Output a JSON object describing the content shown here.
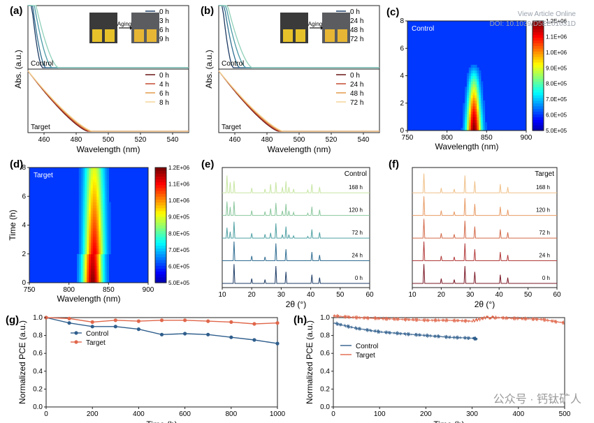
{
  "header": {
    "view_article": "View Article Online",
    "doi": "DOI: 10.1039/D5EE01031D"
  },
  "watermark": "公众号 · 钙钛矿人",
  "palettes": {
    "control": [
      "#1b3a63",
      "#2f6f91",
      "#4a9aa5",
      "#8fd0b8"
    ],
    "target": [
      "#6b1414",
      "#c44a2f",
      "#e29a4a",
      "#f4d59a"
    ],
    "pce_control": "#2f5e8c",
    "pce_target": "#e0664a"
  },
  "chart_data": [
    {
      "id": "a",
      "panel_label": "(a)",
      "type": "line",
      "xlabel": "Wavelength (nm)",
      "ylabel": "Abs. (a.u.)",
      "xlim": [
        450,
        550
      ],
      "xticks": [
        460,
        480,
        500,
        520,
        540
      ],
      "inset_label": "Aging",
      "subplots": [
        {
          "name": "Control",
          "series": [
            {
              "name": "0 h",
              "edge": 459
            },
            {
              "name": "3 h",
              "edge": 461
            },
            {
              "name": "6 h",
              "edge": 465
            },
            {
              "name": "9 h",
              "edge": 469
            }
          ]
        },
        {
          "name": "Target",
          "series": [
            {
              "name": "0 h",
              "edge": 487
            },
            {
              "name": "4 h",
              "edge": 488
            },
            {
              "name": "6 h",
              "edge": 489
            },
            {
              "name": "8 h",
              "edge": 490
            }
          ]
        }
      ]
    },
    {
      "id": "b",
      "panel_label": "(b)",
      "type": "line",
      "xlabel": "Wavelength (nm)",
      "ylabel": "Abs. (a.u.)",
      "xlim": [
        450,
        550
      ],
      "xticks": [
        460,
        480,
        500,
        520,
        540
      ],
      "inset_label": "Aging",
      "subplots": [
        {
          "name": "Control",
          "series": [
            {
              "name": "0 h",
              "edge": 459
            },
            {
              "name": "24 h",
              "edge": 463
            },
            {
              "name": "48 h",
              "edge": 467
            },
            {
              "name": "72 h",
              "edge": 471
            }
          ]
        },
        {
          "name": "Target",
          "series": [
            {
              "name": "0 h",
              "edge": 487
            },
            {
              "name": "24 h",
              "edge": 488
            },
            {
              "name": "48 h",
              "edge": 489
            },
            {
              "name": "72 h",
              "edge": 490
            }
          ]
        }
      ]
    },
    {
      "id": "c",
      "panel_label": "(c)",
      "type": "heatmap",
      "label": "Control",
      "xlabel": "Wavelength (nm)",
      "ylabel": "",
      "xlim": [
        750,
        900
      ],
      "ylim": [
        0,
        8
      ],
      "xticks": [
        750,
        800,
        850,
        900
      ],
      "yticks": [
        0,
        2,
        4,
        6,
        8
      ],
      "colorbar": [
        "5.0E+05",
        "6.0E+05",
        "7.0E+05",
        "8.0E+05",
        "9.0E+05",
        "1.0E+06",
        "1.1E+06",
        "1.2E+06"
      ],
      "peak": {
        "center": 834,
        "max_time": 5.0
      }
    },
    {
      "id": "d",
      "panel_label": "(d)",
      "type": "heatmap",
      "label": "Target",
      "xlabel": "Wavelength (nm)",
      "ylabel": "Time (h)",
      "xlim": [
        750,
        900
      ],
      "ylim": [
        0,
        8
      ],
      "xticks": [
        750,
        800,
        850,
        900
      ],
      "yticks": [
        0,
        2,
        4,
        6,
        8
      ],
      "colorbar": [
        "5.0E+05",
        "6.0E+05",
        "7.0E+05",
        "8.0E+05",
        "9.0E+05",
        "1.0E+06",
        "1.1E+06",
        "1.2E+06"
      ],
      "peak": {
        "center": 832,
        "max_time": 8.0
      }
    },
    {
      "id": "e",
      "panel_label": "(e)",
      "type": "line",
      "label": "Control",
      "xlabel": "2θ (°)",
      "xlim": [
        10,
        60
      ],
      "xticks": [
        10,
        20,
        30,
        40,
        50,
        60
      ],
      "series": [
        "0 h",
        "24 h",
        "72 h",
        "120 h",
        "168 h"
      ],
      "peaks": [
        {
          "x": 14.0,
          "h": 1.0
        },
        {
          "x": 20.0,
          "h": 0.25
        },
        {
          "x": 24.5,
          "h": 0.2
        },
        {
          "x": 28.2,
          "h": 0.9
        },
        {
          "x": 31.6,
          "h": 0.6
        },
        {
          "x": 40.4,
          "h": 0.45
        },
        {
          "x": 43.0,
          "h": 0.3
        }
      ],
      "aging_peaks": [
        {
          "x": 11.6,
          "h": 0.9
        },
        {
          "x": 12.7,
          "h": 0.55
        },
        {
          "x": 26.4,
          "h": 0.45
        },
        {
          "x": 30.4,
          "h": 0.3
        },
        {
          "x": 32.6,
          "h": 0.3
        },
        {
          "x": 34.2,
          "h": 0.2
        },
        {
          "x": 39.0,
          "h": 0.15
        }
      ]
    },
    {
      "id": "f",
      "panel_label": "(f)",
      "type": "line",
      "label": "Target",
      "xlabel": "2θ (°)",
      "xlim": [
        10,
        60
      ],
      "xticks": [
        10,
        20,
        30,
        40,
        50,
        60
      ],
      "series": [
        "0 h",
        "24 h",
        "72 h",
        "120 h",
        "168 h"
      ],
      "peaks": [
        {
          "x": 14.0,
          "h": 1.0
        },
        {
          "x": 20.0,
          "h": 0.25
        },
        {
          "x": 24.5,
          "h": 0.2
        },
        {
          "x": 28.2,
          "h": 0.9
        },
        {
          "x": 31.6,
          "h": 0.6
        },
        {
          "x": 40.4,
          "h": 0.45
        },
        {
          "x": 43.0,
          "h": 0.3
        }
      ]
    },
    {
      "id": "g",
      "panel_label": "(g)",
      "type": "line",
      "xlabel": "Time (h)",
      "ylabel": "Normalized PCE (a.u.)",
      "xlim": [
        0,
        1000
      ],
      "ylim": [
        0.0,
        1.0
      ],
      "xticks": [
        0,
        200,
        400,
        600,
        800,
        1000
      ],
      "yticks": [
        0.0,
        0.2,
        0.4,
        0.6,
        0.8,
        1.0
      ],
      "series": [
        {
          "name": "Control",
          "x": [
            0,
            100,
            200,
            300,
            400,
            500,
            600,
            700,
            800,
            900,
            1000
          ],
          "y": [
            1.0,
            0.94,
            0.9,
            0.9,
            0.87,
            0.81,
            0.82,
            0.81,
            0.78,
            0.75,
            0.71
          ]
        },
        {
          "name": "Target",
          "x": [
            0,
            100,
            200,
            300,
            400,
            500,
            600,
            700,
            800,
            900,
            1000
          ],
          "y": [
            1.0,
            0.99,
            0.95,
            0.97,
            0.96,
            0.97,
            0.97,
            0.96,
            0.95,
            0.93,
            0.94
          ]
        }
      ]
    },
    {
      "id": "h",
      "panel_label": "(h)",
      "type": "line",
      "xlabel": "Time (h)",
      "ylabel": "Normalized PCE (a.u.)",
      "xlim": [
        0,
        500
      ],
      "ylim": [
        0.0,
        1.0
      ],
      "xticks": [
        0,
        100,
        200,
        300,
        400,
        500
      ],
      "yticks": [
        0.0,
        0.2,
        0.4,
        0.6,
        0.8,
        1.0
      ],
      "series": [
        {
          "name": "Control",
          "x": [
            0,
            50,
            100,
            150,
            200,
            250,
            300,
            312
          ],
          "y": [
            0.94,
            0.88,
            0.84,
            0.82,
            0.8,
            0.78,
            0.77,
            0.76
          ]
        },
        {
          "name": "Target",
          "x": [
            0,
            50,
            100,
            150,
            200,
            250,
            300,
            330,
            350,
            400,
            450,
            500
          ],
          "y": [
            1.02,
            1.0,
            0.99,
            0.98,
            0.97,
            0.97,
            0.96,
            1.0,
            1.0,
            0.99,
            0.98,
            0.94
          ]
        }
      ]
    }
  ]
}
